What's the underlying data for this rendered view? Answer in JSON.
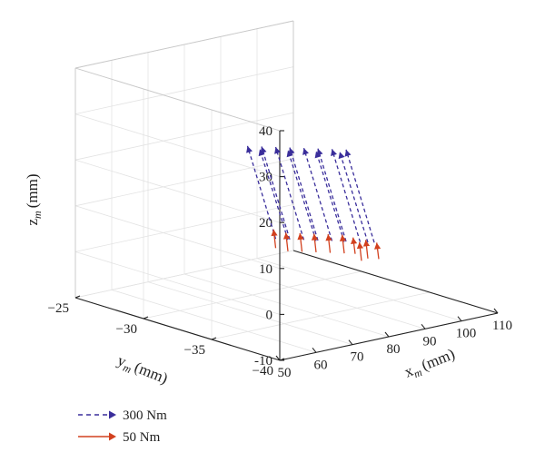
{
  "chart_data": {
    "type": "3d-quiver",
    "axes": {
      "x": {
        "label": "x",
        "label_sub": "m",
        "label_unit": "(mm)",
        "ticks": [
          50,
          60,
          70,
          80,
          90,
          100,
          110
        ],
        "range": [
          50,
          110
        ]
      },
      "y": {
        "label": "y",
        "label_sub": "m",
        "label_unit": "(mm)",
        "ticks": [
          -25,
          -30,
          -35,
          -40
        ],
        "range": [
          -40,
          -25
        ]
      },
      "z": {
        "label": "z",
        "label_sub": "m",
        "label_unit": "(mm)",
        "ticks": [
          -10,
          0,
          10,
          20,
          30,
          40
        ],
        "range": [
          -10,
          40
        ]
      }
    },
    "grid": true,
    "legend_position": "bottom-left",
    "series": [
      {
        "name": "300 Nm",
        "color": "#3a2e9b",
        "line": "dashed",
        "vectors": [
          {
            "x": 77.0,
            "y": -32.5,
            "z": 5,
            "x2": 73.0,
            "y2": -31.5,
            "z2": 25
          },
          {
            "x": 79.0,
            "y": -33.0,
            "z": 5,
            "x2": 75.0,
            "y2": -32.0,
            "z2": 25
          },
          {
            "x": 81.0,
            "y": -33.5,
            "z": 5,
            "x2": 77.0,
            "y2": -32.5,
            "z2": 25
          },
          {
            "x": 83.0,
            "y": -34.0,
            "z": 5,
            "x2": 79.0,
            "y2": -33.0,
            "z2": 25
          },
          {
            "x": 85.0,
            "y": -34.5,
            "z": 5,
            "x2": 81.0,
            "y2": -33.5,
            "z2": 25
          },
          {
            "x": 87.0,
            "y": -35.0,
            "z": 5,
            "x2": 83.0,
            "y2": -34.0,
            "z2": 25
          },
          {
            "x": 89.0,
            "y": -35.5,
            "z": 5,
            "x2": 85.0,
            "y2": -34.5,
            "z2": 25
          },
          {
            "x": 91.0,
            "y": -36.0,
            "z": 5,
            "x2": 87.0,
            "y2": -35.0,
            "z2": 25
          },
          {
            "x": 78.5,
            "y": -33.0,
            "z": 5,
            "x2": 74.5,
            "y2": -32.0,
            "z2": 24.5
          },
          {
            "x": 82.5,
            "y": -34.0,
            "z": 5,
            "x2": 78.5,
            "y2": -33.0,
            "z2": 24.5
          },
          {
            "x": 86.5,
            "y": -35.0,
            "z": 5,
            "x2": 82.5,
            "y2": -34.0,
            "z2": 24.5
          },
          {
            "x": 90.0,
            "y": -35.8,
            "z": 5,
            "x2": 86.0,
            "y2": -34.8,
            "z2": 24.5
          }
        ]
      },
      {
        "name": "50 Nm",
        "color": "#d2401e",
        "line": "solid",
        "vectors": [
          {
            "x": 77.0,
            "y": -32.5,
            "z": 3,
            "x2": 76.8,
            "y2": -32.4,
            "z2": 7
          },
          {
            "x": 78.5,
            "y": -33.0,
            "z": 2.5,
            "x2": 78.3,
            "y2": -32.9,
            "z2": 6.5
          },
          {
            "x": 80.5,
            "y": -33.5,
            "z": 2.5,
            "x2": 80.3,
            "y2": -33.4,
            "z2": 6.5
          },
          {
            "x": 82.5,
            "y": -34.0,
            "z": 2.5,
            "x2": 82.3,
            "y2": -33.9,
            "z2": 6.5
          },
          {
            "x": 84.5,
            "y": -34.5,
            "z": 2.5,
            "x2": 84.3,
            "y2": -34.4,
            "z2": 6.5
          },
          {
            "x": 86.5,
            "y": -35.0,
            "z": 2.5,
            "x2": 86.3,
            "y2": -34.9,
            "z2": 6.5
          },
          {
            "x": 88.0,
            "y": -35.4,
            "z": 2.5,
            "x2": 87.8,
            "y2": -35.3,
            "z2": 6.0
          },
          {
            "x": 90.0,
            "y": -35.8,
            "z": 1.5,
            "x2": 89.8,
            "y2": -35.7,
            "z2": 5.5
          },
          {
            "x": 91.5,
            "y": -36.2,
            "z": 1.5,
            "x2": 91.3,
            "y2": -36.1,
            "z2": 5.0
          },
          {
            "x": 89.0,
            "y": -35.6,
            "z": 1.0,
            "x2": 88.8,
            "y2": -35.5,
            "z2": 5.0
          }
        ]
      }
    ]
  }
}
